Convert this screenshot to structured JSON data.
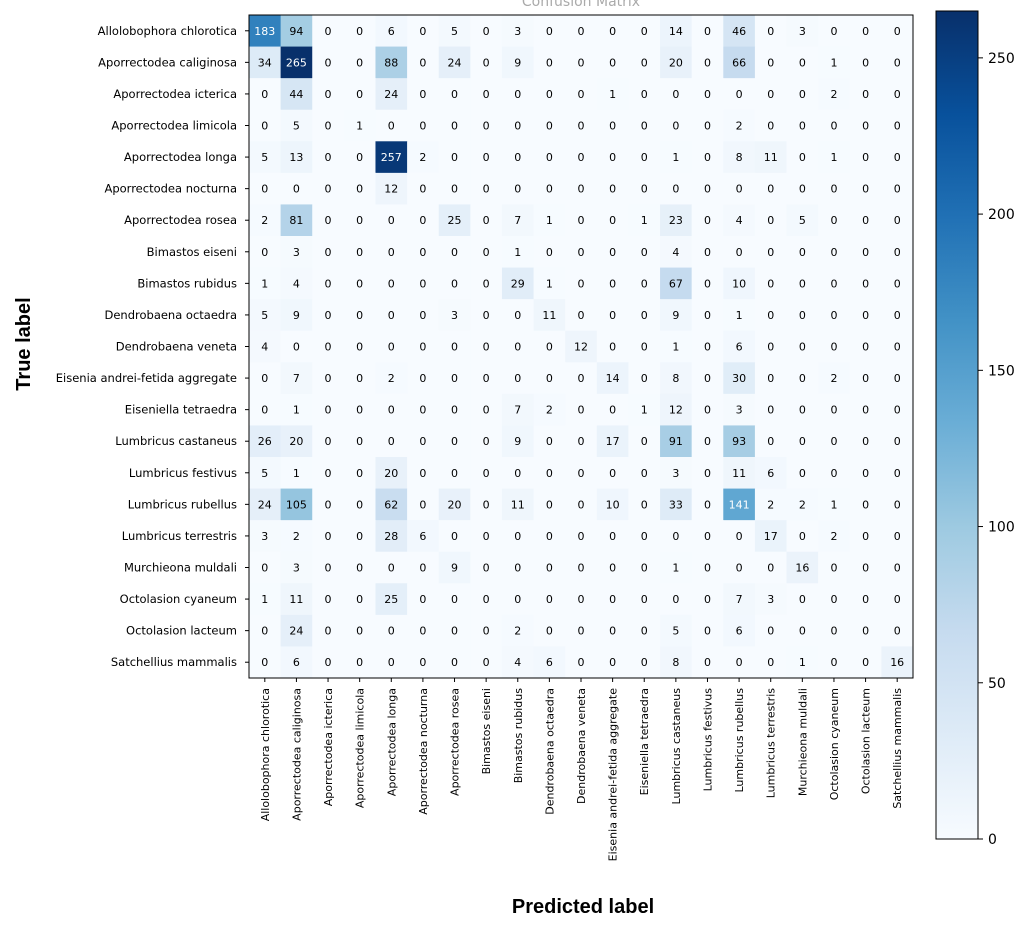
{
  "chart_data": {
    "type": "heatmap",
    "title": "Confusion Matrix",
    "xlabel": "Predicted label",
    "ylabel": "True label",
    "labels": [
      "Allolobophora chlorotica",
      "Aporrectodea caliginosa",
      "Aporrectodea icterica",
      "Aporrectodea limicola",
      "Aporrectodea longa",
      "Aporrectodea nocturna",
      "Aporrectodea rosea",
      "Bimastos eiseni",
      "Bimastos rubidus",
      "Dendrobaena octaedra",
      "Dendrobaena veneta",
      "Eisenia andrei-fetida aggregate",
      "Eiseniella tetraedra",
      "Lumbricus castaneus",
      "Lumbricus festivus",
      "Lumbricus rubellus",
      "Lumbricus terrestris",
      "Murchieona muldali",
      "Octolasion cyaneum",
      "Octolasion lacteum",
      "Satchellius mammalis"
    ],
    "matrix": [
      [
        183,
        94,
        0,
        0,
        6,
        0,
        5,
        0,
        3,
        0,
        0,
        0,
        0,
        14,
        0,
        46,
        0,
        3,
        0,
        0,
        0
      ],
      [
        34,
        265,
        0,
        0,
        88,
        0,
        24,
        0,
        9,
        0,
        0,
        0,
        0,
        20,
        0,
        66,
        0,
        0,
        1,
        0,
        0
      ],
      [
        0,
        44,
        0,
        0,
        24,
        0,
        0,
        0,
        0,
        0,
        0,
        1,
        0,
        0,
        0,
        0,
        0,
        0,
        2,
        0,
        0
      ],
      [
        0,
        5,
        0,
        1,
        0,
        0,
        0,
        0,
        0,
        0,
        0,
        0,
        0,
        0,
        0,
        2,
        0,
        0,
        0,
        0,
        0
      ],
      [
        5,
        13,
        0,
        0,
        257,
        2,
        0,
        0,
        0,
        0,
        0,
        0,
        0,
        1,
        0,
        8,
        11,
        0,
        1,
        0,
        0
      ],
      [
        0,
        0,
        0,
        0,
        12,
        0,
        0,
        0,
        0,
        0,
        0,
        0,
        0,
        0,
        0,
        0,
        0,
        0,
        0,
        0,
        0
      ],
      [
        2,
        81,
        0,
        0,
        0,
        0,
        25,
        0,
        7,
        1,
        0,
        0,
        1,
        23,
        0,
        4,
        0,
        5,
        0,
        0,
        0
      ],
      [
        0,
        3,
        0,
        0,
        0,
        0,
        0,
        0,
        1,
        0,
        0,
        0,
        0,
        4,
        0,
        0,
        0,
        0,
        0,
        0,
        0
      ],
      [
        1,
        4,
        0,
        0,
        0,
        0,
        0,
        0,
        29,
        1,
        0,
        0,
        0,
        67,
        0,
        10,
        0,
        0,
        0,
        0,
        0
      ],
      [
        5,
        9,
        0,
        0,
        0,
        0,
        3,
        0,
        0,
        11,
        0,
        0,
        0,
        9,
        0,
        1,
        0,
        0,
        0,
        0,
        0
      ],
      [
        4,
        0,
        0,
        0,
        0,
        0,
        0,
        0,
        0,
        0,
        12,
        0,
        0,
        1,
        0,
        6,
        0,
        0,
        0,
        0,
        0
      ],
      [
        0,
        7,
        0,
        0,
        2,
        0,
        0,
        0,
        0,
        0,
        0,
        14,
        0,
        8,
        0,
        30,
        0,
        0,
        2,
        0,
        0
      ],
      [
        0,
        1,
        0,
        0,
        0,
        0,
        0,
        0,
        7,
        2,
        0,
        0,
        1,
        12,
        0,
        3,
        0,
        0,
        0,
        0,
        0
      ],
      [
        26,
        20,
        0,
        0,
        0,
        0,
        0,
        0,
        9,
        0,
        0,
        17,
        0,
        91,
        0,
        93,
        0,
        0,
        0,
        0,
        0
      ],
      [
        5,
        1,
        0,
        0,
        20,
        0,
        0,
        0,
        0,
        0,
        0,
        0,
        0,
        3,
        0,
        11,
        6,
        0,
        0,
        0,
        0
      ],
      [
        24,
        105,
        0,
        0,
        62,
        0,
        20,
        0,
        11,
        0,
        0,
        10,
        0,
        33,
        0,
        141,
        2,
        2,
        1,
        0,
        0
      ],
      [
        3,
        2,
        0,
        0,
        28,
        6,
        0,
        0,
        0,
        0,
        0,
        0,
        0,
        0,
        0,
        0,
        17,
        0,
        2,
        0,
        0
      ],
      [
        0,
        3,
        0,
        0,
        0,
        0,
        9,
        0,
        0,
        0,
        0,
        0,
        0,
        1,
        0,
        0,
        0,
        16,
        0,
        0,
        0
      ],
      [
        1,
        11,
        0,
        0,
        25,
        0,
        0,
        0,
        0,
        0,
        0,
        0,
        0,
        0,
        0,
        7,
        3,
        0,
        0,
        0,
        0
      ],
      [
        0,
        24,
        0,
        0,
        0,
        0,
        0,
        0,
        2,
        0,
        0,
        0,
        0,
        5,
        0,
        6,
        0,
        0,
        0,
        0,
        0
      ],
      [
        0,
        6,
        0,
        0,
        0,
        0,
        0,
        0,
        4,
        6,
        0,
        0,
        0,
        8,
        0,
        0,
        0,
        1,
        0,
        0,
        16
      ]
    ],
    "colorbar": {
      "colormap": "Blues",
      "vmin": 0,
      "vmax": 265,
      "ticks": [
        0,
        50,
        100,
        150,
        200,
        250
      ]
    }
  }
}
